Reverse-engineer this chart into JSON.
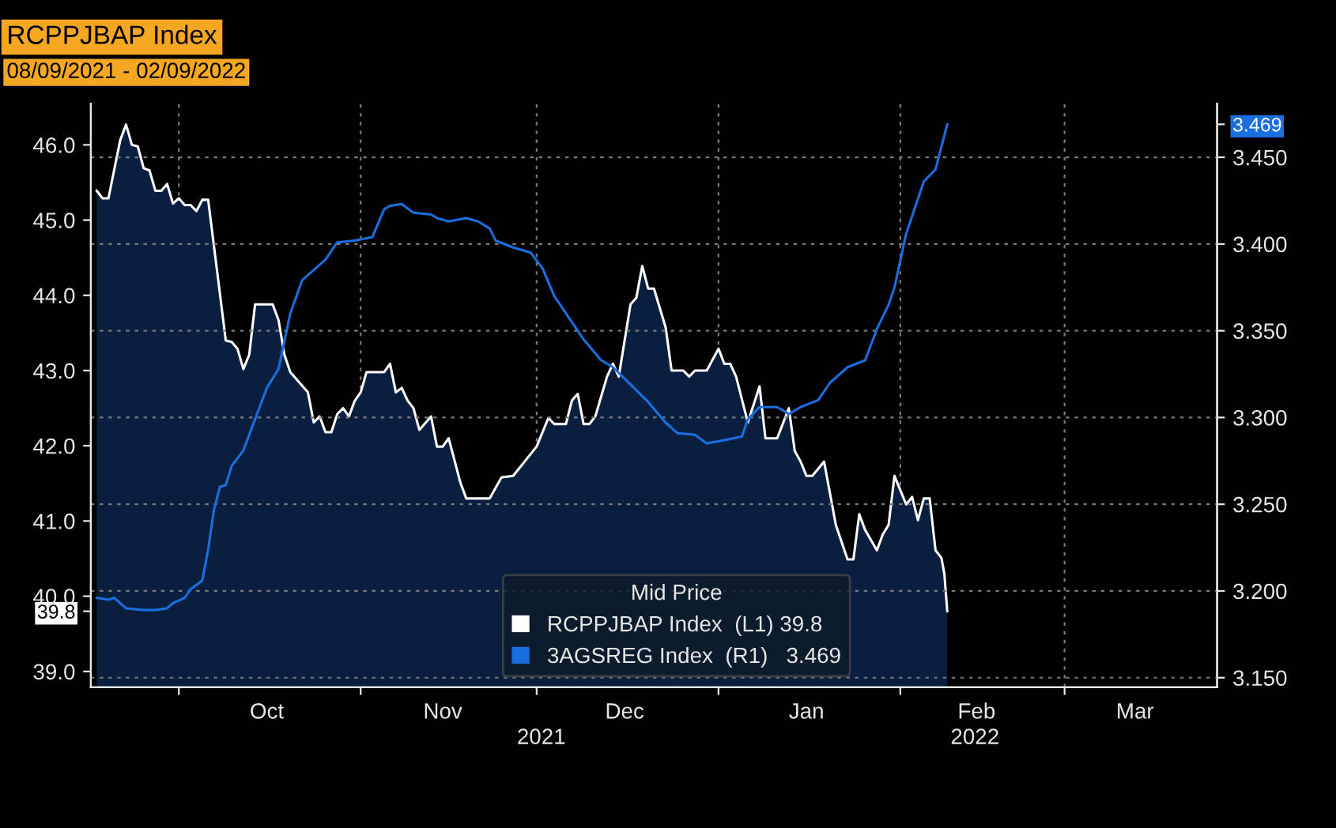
{
  "chart_data": {
    "type": "area",
    "title": "RCPPJBAP Index",
    "subtitle": "08/09/2021 - 02/09/2022",
    "legend_title": "Mid Price",
    "legend": "bottom",
    "grid": true,
    "line_style": "solid",
    "marker": "none",
    "xlim": [
      "2021-09-16",
      "2022-03-27"
    ],
    "xticks": [
      {
        "value": "2021-10-01",
        "label": null
      },
      {
        "value": "2021-10-16",
        "label": "Oct"
      },
      {
        "value": "2021-11-01",
        "label": null
      },
      {
        "value": "2021-11-15",
        "label": "Nov"
      },
      {
        "value": "2021-12-01",
        "label": null
      },
      {
        "value": "2021-12-16",
        "label": "Dec"
      },
      {
        "value": "2022-01-01",
        "label": null
      },
      {
        "value": "2022-01-16",
        "label": "Jan"
      },
      {
        "value": "2022-02-01",
        "label": null
      },
      {
        "value": "2022-02-14",
        "label": "Feb"
      },
      {
        "value": "2022-03-01",
        "label": null
      },
      {
        "value": "2022-03-13",
        "label": "Mar"
      }
    ],
    "annotations": [
      "2021",
      "2022"
    ],
    "ylim": [
      38.79,
      46.55
    ],
    "yticks": [
      {
        "value": 39.8,
        "label": "39.8"
      },
      {
        "value": 39,
        "label": "39.0"
      },
      {
        "value": 40,
        "label": "40.0"
      },
      {
        "value": 41,
        "label": "41.0"
      },
      {
        "value": 42,
        "label": "42.0"
      },
      {
        "value": 43,
        "label": "43.0"
      },
      {
        "value": 44,
        "label": "44.0"
      },
      {
        "value": 45,
        "label": "45.0"
      },
      {
        "value": 46,
        "label": "46.0"
      }
    ],
    "y2lim": [
      3.1445,
      3.481
    ],
    "y2ticks": [
      {
        "value": 3.469,
        "label": "3.469"
      },
      {
        "value": 3.15,
        "label": "3.150"
      },
      {
        "value": 3.2,
        "label": "3.200"
      },
      {
        "value": 3.25,
        "label": "3.250"
      },
      {
        "value": 3.3,
        "label": "3.300"
      },
      {
        "value": 3.35,
        "label": "3.350"
      },
      {
        "value": 3.4,
        "label": "3.400"
      },
      {
        "value": 3.45,
        "label": "3.450"
      }
    ],
    "series": [
      {
        "name": "RCPPJBAP Index  (L1) 39.8",
        "color": "#ffffff",
        "axis": "y",
        "x": [
          "2021-09-17",
          "2021-09-18",
          "2021-09-19",
          "2021-09-21",
          "2021-09-22",
          "2021-09-23",
          "2021-09-24",
          "2021-09-25",
          "2021-09-26",
          "2021-09-27",
          "2021-09-28",
          "2021-09-29",
          "2021-09-30",
          "2021-10-01",
          "2021-10-02",
          "2021-10-03",
          "2021-10-04",
          "2021-10-05",
          "2021-10-06",
          "2021-10-09",
          "2021-10-10",
          "2021-10-11",
          "2021-10-12",
          "2021-10-13",
          "2021-10-14",
          "2021-10-17",
          "2021-10-18",
          "2021-10-19",
          "2021-10-20",
          "2021-10-23",
          "2021-10-24",
          "2021-10-25",
          "2021-10-26",
          "2021-10-27",
          "2021-10-28",
          "2021-10-29",
          "2021-10-30",
          "2021-10-31",
          "2021-11-01",
          "2021-11-02",
          "2021-11-05",
          "2021-11-06",
          "2021-11-07",
          "2021-11-08",
          "2021-11-09",
          "2021-11-10",
          "2021-11-11",
          "2021-11-13",
          "2021-11-14",
          "2021-11-15",
          "2021-11-16",
          "2021-11-18",
          "2021-11-19",
          "2021-11-23",
          "2021-11-25",
          "2021-11-27",
          "2021-12-01",
          "2021-12-03",
          "2021-12-04",
          "2021-12-06",
          "2021-12-07",
          "2021-12-08",
          "2021-12-09",
          "2021-12-10",
          "2021-12-11",
          "2021-12-13",
          "2021-12-14",
          "2021-12-15",
          "2021-12-17",
          "2021-12-18",
          "2021-12-19",
          "2021-12-20",
          "2021-12-21",
          "2021-12-23",
          "2021-12-24",
          "2021-12-26",
          "2021-12-27",
          "2021-12-28",
          "2021-12-30",
          "2022-01-01",
          "2022-01-02",
          "2022-01-03",
          "2022-01-04",
          "2022-01-06",
          "2022-01-08",
          "2022-01-09",
          "2022-01-11",
          "2022-01-13",
          "2022-01-14",
          "2022-01-15",
          "2022-01-16",
          "2022-01-17",
          "2022-01-19",
          "2022-01-21",
          "2022-01-23",
          "2022-01-24",
          "2022-01-25",
          "2022-01-26",
          "2022-01-28",
          "2022-01-29",
          "2022-01-30",
          "2022-01-31",
          "2022-02-02",
          "2022-02-03",
          "2022-02-04",
          "2022-02-05",
          "2022-02-06",
          "2022-02-07",
          "2022-02-08",
          "2022-02-08T12:00",
          "2022-02-09"
        ],
        "values": [
          45.39,
          45.29,
          45.29,
          46.06,
          46.27,
          46.0,
          45.98,
          45.69,
          45.66,
          45.39,
          45.39,
          45.48,
          45.22,
          45.29,
          45.2,
          45.2,
          45.12,
          45.27,
          45.27,
          43.4,
          43.38,
          43.29,
          43.02,
          43.21,
          43.88,
          43.88,
          43.67,
          43.21,
          42.98,
          42.71,
          42.31,
          42.39,
          42.18,
          42.18,
          42.42,
          42.5,
          42.39,
          42.6,
          42.71,
          42.98,
          42.98,
          43.09,
          42.71,
          42.77,
          42.6,
          42.5,
          42.21,
          42.39,
          41.99,
          41.99,
          42.1,
          41.51,
          41.3,
          41.3,
          41.58,
          41.6,
          41.99,
          42.37,
          42.29,
          42.29,
          42.6,
          42.69,
          42.29,
          42.29,
          42.39,
          42.92,
          43.09,
          42.92,
          43.88,
          43.97,
          44.39,
          44.09,
          44.09,
          43.57,
          43.0,
          43.0,
          42.92,
          43.0,
          43.0,
          43.29,
          43.09,
          43.09,
          42.92,
          42.31,
          42.79,
          42.1,
          42.1,
          42.5,
          41.93,
          41.79,
          41.6,
          41.6,
          41.79,
          40.95,
          40.49,
          40.49,
          41.09,
          40.88,
          40.61,
          40.82,
          40.95,
          41.6,
          41.22,
          41.32,
          41.01,
          41.3,
          41.3,
          40.61,
          40.51,
          40.3,
          39.8
        ]
      },
      {
        "name": "3AGSREG Index  (R1)   3.469",
        "type": "line",
        "color": "#1a6fe0",
        "axis": "y2",
        "x": [
          "2021-09-17",
          "2021-09-19",
          "2021-09-20",
          "2021-09-21",
          "2021-09-22",
          "2021-09-25",
          "2021-09-27",
          "2021-09-29",
          "2021-09-30",
          "2021-10-02",
          "2021-10-03",
          "2021-10-05",
          "2021-10-06",
          "2021-10-07",
          "2021-10-08",
          "2021-10-09",
          "2021-10-10",
          "2021-10-12",
          "2021-10-14",
          "2021-10-16",
          "2021-10-18",
          "2021-10-20",
          "2021-10-22",
          "2021-10-25",
          "2021-10-26",
          "2021-10-28",
          "2021-10-31",
          "2021-11-03",
          "2021-11-05",
          "2021-11-06",
          "2021-11-08",
          "2021-11-10",
          "2021-11-13",
          "2021-11-14",
          "2021-11-16",
          "2021-11-19",
          "2021-11-21",
          "2021-11-23",
          "2021-11-24",
          "2021-11-27",
          "2021-11-30",
          "2021-12-02",
          "2021-12-04",
          "2021-12-06",
          "2021-12-09",
          "2021-12-12",
          "2021-12-14",
          "2021-12-17",
          "2021-12-20",
          "2021-12-23",
          "2021-12-25",
          "2021-12-28",
          "2021-12-30",
          "2022-01-02",
          "2022-01-05",
          "2022-01-06",
          "2022-01-08",
          "2022-01-11",
          "2022-01-13",
          "2022-01-15",
          "2022-01-18",
          "2022-01-20",
          "2022-01-23",
          "2022-01-26",
          "2022-01-28",
          "2022-01-30",
          "2022-01-31",
          "2022-02-02",
          "2022-02-05",
          "2022-02-07",
          "2022-02-09"
        ],
        "values": [
          3.196,
          3.195,
          3.196,
          3.193,
          3.19,
          3.189,
          3.189,
          3.19,
          3.193,
          3.196,
          3.201,
          3.206,
          3.224,
          3.247,
          3.26,
          3.261,
          3.272,
          3.281,
          3.299,
          3.317,
          3.328,
          3.36,
          3.379,
          3.388,
          3.391,
          3.401,
          3.402,
          3.404,
          3.42,
          3.422,
          3.423,
          3.418,
          3.417,
          3.415,
          3.413,
          3.415,
          3.413,
          3.409,
          3.402,
          3.398,
          3.395,
          3.386,
          3.37,
          3.36,
          3.345,
          3.333,
          3.329,
          3.319,
          3.309,
          3.297,
          3.291,
          3.29,
          3.285,
          3.287,
          3.289,
          3.299,
          3.306,
          3.306,
          3.302,
          3.306,
          3.31,
          3.32,
          3.329,
          3.333,
          3.351,
          3.365,
          3.375,
          3.406,
          3.436,
          3.443,
          3.469
        ]
      }
    ]
  }
}
